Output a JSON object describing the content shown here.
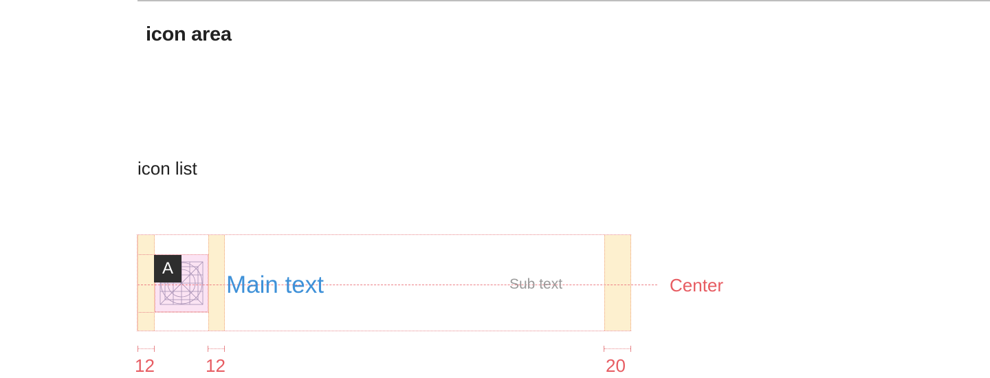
{
  "headings": {
    "section_title": "icon area",
    "subsection_title": "icon list"
  },
  "icon_list": {
    "badge_label": "A",
    "main_text": "Main text",
    "sub_text": "Sub text",
    "center_label": "Center"
  },
  "dimensions": {
    "left_padding": "12",
    "icon_text_gap": "12",
    "right_padding": "20"
  },
  "colors": {
    "guide_red": "#e75c62",
    "padding_fill": "#fdf0cf",
    "icon_area_fill": "#fbe3f3",
    "main_text_blue": "#3f91d8",
    "sub_text_gray": "#9a9a9a",
    "badge_dark": "#2e2e2e"
  },
  "icons": {
    "placeholder": "icon-keyline-grid"
  }
}
